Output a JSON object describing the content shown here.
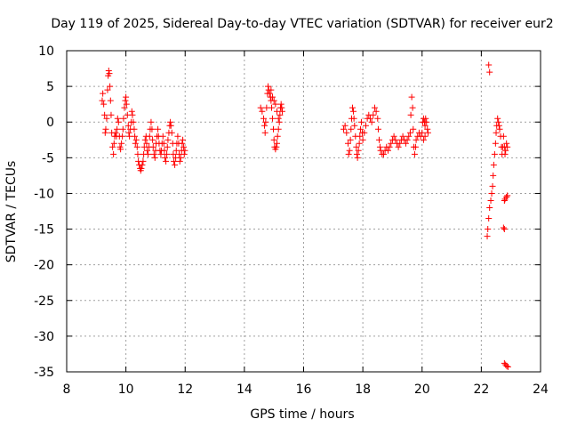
{
  "chart_data": {
    "type": "scatter",
    "title": "Day 119 of 2025, Sidereal Day-to-day VTEC variation (SDTVAR) for receiver eur2",
    "xlabel": "GPS time / hours",
    "ylabel": "SDTVAR / TECUs",
    "xlim": [
      8,
      24
    ],
    "ylim": [
      -35,
      10
    ],
    "xticks": [
      8,
      10,
      12,
      14,
      16,
      18,
      20,
      22,
      24
    ],
    "yticks": [
      10,
      5,
      0,
      -5,
      -10,
      -15,
      -20,
      -25,
      -30,
      -35
    ],
    "grid": true,
    "marker": "+",
    "colors": {
      "series": "#ff0000",
      "grid": "#a0a0a0",
      "axis": "#000000"
    },
    "series": [
      {
        "name": "SDTVAR",
        "points": [
          [
            9.2,
            3.0
          ],
          [
            9.22,
            4.0
          ],
          [
            9.25,
            2.5
          ],
          [
            9.28,
            1.0
          ],
          [
            9.3,
            -1.5
          ],
          [
            9.32,
            -1.0
          ],
          [
            9.35,
            0.5
          ],
          [
            9.38,
            4.5
          ],
          [
            9.4,
            6.5
          ],
          [
            9.42,
            7.2
          ],
          [
            9.44,
            6.8
          ],
          [
            9.46,
            5.0
          ],
          [
            9.48,
            3.0
          ],
          [
            9.5,
            1.0
          ],
          [
            9.52,
            -1.5
          ],
          [
            9.55,
            -3.5
          ],
          [
            9.58,
            -4.5
          ],
          [
            9.6,
            -3.0
          ],
          [
            9.62,
            -2.0
          ],
          [
            9.65,
            -1.5
          ],
          [
            9.68,
            -2.0
          ],
          [
            9.7,
            -1.0
          ],
          [
            9.72,
            0.5
          ],
          [
            9.75,
            0.0
          ],
          [
            9.78,
            -2.0
          ],
          [
            9.8,
            -3.5
          ],
          [
            9.82,
            -3.8
          ],
          [
            9.85,
            -3.0
          ],
          [
            9.88,
            -2.0
          ],
          [
            9.9,
            -1.0
          ],
          [
            9.92,
            0.5
          ],
          [
            9.95,
            2.0
          ],
          [
            9.98,
            3.0
          ],
          [
            10.0,
            3.5
          ],
          [
            10.02,
            2.5
          ],
          [
            10.05,
            1.0
          ],
          [
            10.08,
            -0.5
          ],
          [
            10.1,
            -1.5
          ],
          [
            10.12,
            -2.0
          ],
          [
            10.15,
            -1.0
          ],
          [
            10.18,
            0.0
          ],
          [
            10.2,
            1.5
          ],
          [
            10.22,
            1.0
          ],
          [
            10.25,
            0.0
          ],
          [
            10.28,
            -1.0
          ],
          [
            10.3,
            -2.0
          ],
          [
            10.32,
            -3.0
          ],
          [
            10.35,
            -2.5
          ],
          [
            10.38,
            -3.5
          ],
          [
            10.4,
            -4.5
          ],
          [
            10.42,
            -5.5
          ],
          [
            10.45,
            -6.0
          ],
          [
            10.48,
            -6.5
          ],
          [
            10.5,
            -6.8
          ],
          [
            10.52,
            -6.5
          ],
          [
            10.55,
            -6.0
          ],
          [
            10.58,
            -5.5
          ],
          [
            10.6,
            -4.5
          ],
          [
            10.62,
            -3.5
          ],
          [
            10.65,
            -2.5
          ],
          [
            10.68,
            -2.0
          ],
          [
            10.7,
            -3.0
          ],
          [
            10.72,
            -4.0
          ],
          [
            10.75,
            -4.5
          ],
          [
            10.78,
            -3.5
          ],
          [
            10.8,
            -2.0
          ],
          [
            10.82,
            -1.0
          ],
          [
            10.85,
            0.0
          ],
          [
            10.88,
            -1.0
          ],
          [
            10.9,
            -2.5
          ],
          [
            10.92,
            -3.5
          ],
          [
            10.95,
            -4.5
          ],
          [
            10.98,
            -5.0
          ],
          [
            11.0,
            -4.0
          ],
          [
            11.02,
            -3.0
          ],
          [
            11.05,
            -2.0
          ],
          [
            11.08,
            -1.0
          ],
          [
            11.1,
            -2.0
          ],
          [
            11.12,
            -3.0
          ],
          [
            11.15,
            -4.0
          ],
          [
            11.18,
            -4.5
          ],
          [
            11.2,
            -4.0
          ],
          [
            11.22,
            -3.0
          ],
          [
            11.25,
            -2.0
          ],
          [
            11.28,
            -3.0
          ],
          [
            11.3,
            -4.0
          ],
          [
            11.32,
            -5.0
          ],
          [
            11.35,
            -5.5
          ],
          [
            11.38,
            -4.5
          ],
          [
            11.4,
            -3.5
          ],
          [
            11.42,
            -2.5
          ],
          [
            11.45,
            -1.5
          ],
          [
            11.48,
            -0.5
          ],
          [
            11.5,
            0.0
          ],
          [
            11.52,
            -0.5
          ],
          [
            11.55,
            -1.5
          ],
          [
            11.58,
            -3.0
          ],
          [
            11.6,
            -4.5
          ],
          [
            11.62,
            -5.5
          ],
          [
            11.65,
            -6.0
          ],
          [
            11.68,
            -5.0
          ],
          [
            11.7,
            -4.0
          ],
          [
            11.72,
            -3.0
          ],
          [
            11.75,
            -2.0
          ],
          [
            11.78,
            -3.0
          ],
          [
            11.8,
            -4.5
          ],
          [
            11.82,
            -5.5
          ],
          [
            11.85,
            -5.0
          ],
          [
            11.88,
            -4.0
          ],
          [
            11.9,
            -3.0
          ],
          [
            11.92,
            -2.5
          ],
          [
            11.95,
            -3.5
          ],
          [
            11.97,
            -4.5
          ],
          [
            11.99,
            -4.0
          ],
          [
            14.55,
            2.0
          ],
          [
            14.6,
            1.5
          ],
          [
            14.65,
            0.5
          ],
          [
            14.68,
            -0.5
          ],
          [
            14.7,
            -1.5
          ],
          [
            14.72,
            0.0
          ],
          [
            14.75,
            2.0
          ],
          [
            14.78,
            4.0
          ],
          [
            14.8,
            5.0
          ],
          [
            14.82,
            4.5
          ],
          [
            14.85,
            4.0
          ],
          [
            14.88,
            3.5
          ],
          [
            14.9,
            3.0
          ],
          [
            14.92,
            2.0
          ],
          [
            14.95,
            0.5
          ],
          [
            14.98,
            -1.0
          ],
          [
            15.0,
            -2.5
          ],
          [
            15.02,
            -3.5
          ],
          [
            15.05,
            -3.8
          ],
          [
            15.08,
            -3.5
          ],
          [
            15.1,
            -3.0
          ],
          [
            15.12,
            -2.0
          ],
          [
            15.15,
            -1.0
          ],
          [
            15.18,
            0.0
          ],
          [
            15.2,
            1.0
          ],
          [
            15.22,
            2.0
          ],
          [
            15.24,
            2.5
          ],
          [
            15.26,
            2.0
          ],
          [
            15.28,
            1.5
          ],
          [
            15.0,
            3.0
          ],
          [
            15.05,
            2.5
          ],
          [
            15.1,
            1.5
          ],
          [
            15.15,
            0.5
          ],
          [
            14.9,
            4.5
          ],
          [
            14.95,
            3.5
          ],
          [
            17.35,
            -1.0
          ],
          [
            17.4,
            -0.5
          ],
          [
            17.45,
            -1.5
          ],
          [
            17.5,
            -3.0
          ],
          [
            17.52,
            -4.5
          ],
          [
            17.55,
            -4.0
          ],
          [
            17.58,
            -2.5
          ],
          [
            17.6,
            -1.0
          ],
          [
            17.62,
            0.5
          ],
          [
            17.65,
            2.0
          ],
          [
            17.68,
            1.5
          ],
          [
            17.7,
            0.5
          ],
          [
            17.72,
            -0.5
          ],
          [
            17.75,
            -2.0
          ],
          [
            17.78,
            -3.5
          ],
          [
            17.8,
            -4.5
          ],
          [
            17.82,
            -5.0
          ],
          [
            17.85,
            -4.0
          ],
          [
            17.88,
            -3.0
          ],
          [
            17.9,
            -2.0
          ],
          [
            17.92,
            -1.0
          ],
          [
            17.95,
            0.0
          ],
          [
            17.98,
            -1.5
          ],
          [
            18.0,
            -2.5
          ],
          [
            18.05,
            -1.5
          ],
          [
            18.1,
            -0.5
          ],
          [
            18.15,
            0.5
          ],
          [
            18.2,
            1.0
          ],
          [
            18.25,
            0.5
          ],
          [
            18.3,
            0.0
          ],
          [
            18.35,
            1.0
          ],
          [
            18.4,
            2.0
          ],
          [
            18.45,
            1.5
          ],
          [
            18.5,
            0.5
          ],
          [
            18.52,
            -1.0
          ],
          [
            18.55,
            -2.5
          ],
          [
            18.58,
            -3.5
          ],
          [
            18.6,
            -4.0
          ],
          [
            18.65,
            -4.5
          ],
          [
            18.7,
            -4.5
          ],
          [
            18.75,
            -4.0
          ],
          [
            18.8,
            -3.5
          ],
          [
            18.85,
            -4.0
          ],
          [
            18.9,
            -3.5
          ],
          [
            18.95,
            -3.0
          ],
          [
            19.0,
            -2.5
          ],
          [
            19.05,
            -2.0
          ],
          [
            19.1,
            -2.5
          ],
          [
            19.15,
            -3.0
          ],
          [
            19.2,
            -3.5
          ],
          [
            19.25,
            -3.0
          ],
          [
            19.3,
            -2.5
          ],
          [
            19.35,
            -2.0
          ],
          [
            19.4,
            -2.5
          ],
          [
            19.45,
            -3.0
          ],
          [
            19.5,
            -2.5
          ],
          [
            19.55,
            -2.0
          ],
          [
            19.6,
            -1.5
          ],
          [
            19.62,
            1.0
          ],
          [
            19.65,
            3.5
          ],
          [
            19.68,
            2.0
          ],
          [
            19.7,
            -1.0
          ],
          [
            19.72,
            -3.5
          ],
          [
            19.75,
            -4.5
          ],
          [
            19.78,
            -3.5
          ],
          [
            19.8,
            -2.5
          ],
          [
            19.85,
            -2.0
          ],
          [
            19.9,
            -1.5
          ],
          [
            19.95,
            -2.0
          ],
          [
            20.0,
            -1.5
          ],
          [
            20.02,
            0.0
          ],
          [
            20.05,
            0.5
          ],
          [
            20.08,
            0.0
          ],
          [
            20.1,
            -0.5
          ],
          [
            20.12,
            0.5
          ],
          [
            20.15,
            0.0
          ],
          [
            20.18,
            -1.0
          ],
          [
            20.2,
            -1.5
          ],
          [
            20.1,
            -2.0
          ],
          [
            20.05,
            -2.5
          ],
          [
            22.25,
            8.0
          ],
          [
            22.28,
            7.0
          ],
          [
            22.2,
            -16.0
          ],
          [
            22.22,
            -15.0
          ],
          [
            22.25,
            -13.5
          ],
          [
            22.28,
            -12.0
          ],
          [
            22.32,
            -11.0
          ],
          [
            22.35,
            -10.0
          ],
          [
            22.38,
            -9.0
          ],
          [
            22.4,
            -7.5
          ],
          [
            22.42,
            -6.0
          ],
          [
            22.45,
            -4.5
          ],
          [
            22.48,
            -3.0
          ],
          [
            22.5,
            -1.5
          ],
          [
            22.52,
            -0.5
          ],
          [
            22.55,
            0.5
          ],
          [
            22.58,
            0.0
          ],
          [
            22.6,
            -0.5
          ],
          [
            22.62,
            -1.0
          ],
          [
            22.65,
            -2.0
          ],
          [
            22.68,
            -3.5
          ],
          [
            22.7,
            -4.5
          ],
          [
            22.72,
            -3.5
          ],
          [
            22.75,
            -2.0
          ],
          [
            22.78,
            -3.5
          ],
          [
            22.8,
            -4.5
          ],
          [
            22.82,
            -4.0
          ],
          [
            22.85,
            -3.0
          ],
          [
            22.88,
            -3.5
          ],
          [
            22.75,
            -14.8
          ],
          [
            22.78,
            -15.0
          ],
          [
            22.78,
            -11.0
          ],
          [
            22.8,
            -10.8
          ],
          [
            22.85,
            -10.5
          ],
          [
            22.88,
            -10.3
          ],
          [
            22.78,
            -33.8
          ],
          [
            22.82,
            -34.0
          ],
          [
            22.86,
            -34.2
          ],
          [
            22.9,
            -34.3
          ]
        ]
      }
    ]
  }
}
